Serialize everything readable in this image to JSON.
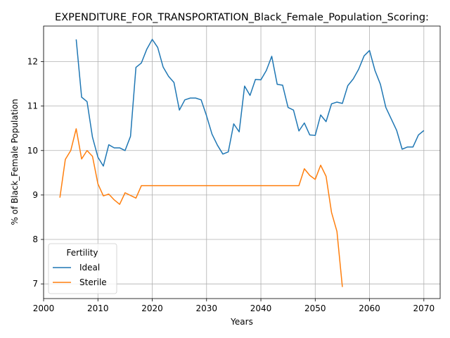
{
  "chart_data": {
    "type": "line",
    "title": "EXPENDITURE_FOR_TRANSPORTATION_Black_Female_Population_Scoring:",
    "xlabel": "Years",
    "ylabel": "% of Black_Female Population",
    "xlim": [
      2000,
      2073
    ],
    "ylim": [
      6.67,
      12.8
    ],
    "xticks": [
      2000,
      2010,
      2020,
      2030,
      2040,
      2050,
      2060,
      2070
    ],
    "yticks": [
      7,
      8,
      9,
      10,
      11,
      12
    ],
    "grid": true,
    "legend": {
      "title": "Fertility",
      "placement": "lower-left"
    },
    "series": [
      {
        "name": "Ideal",
        "color": "#1f77b4",
        "x": [
          2006,
          2007,
          2008,
          2009,
          2010,
          2011,
          2012,
          2013,
          2014,
          2015,
          2016,
          2017,
          2018,
          2019,
          2020,
          2021,
          2022,
          2023,
          2024,
          2025,
          2026,
          2027,
          2028,
          2029,
          2030,
          2031,
          2032,
          2033,
          2034,
          2035,
          2036,
          2037,
          2038,
          2039,
          2040,
          2041,
          2042,
          2043,
          2044,
          2045,
          2046,
          2047,
          2048,
          2049,
          2050,
          2051,
          2052,
          2053,
          2054,
          2055,
          2056,
          2057,
          2058,
          2059,
          2060,
          2061,
          2062,
          2063,
          2064,
          2065,
          2066,
          2067,
          2068,
          2069,
          2070
        ],
        "values": [
          12.5,
          11.2,
          11.1,
          10.3,
          9.85,
          9.65,
          10.13,
          10.06,
          10.06,
          10.0,
          10.32,
          11.87,
          11.97,
          12.28,
          12.5,
          12.32,
          11.88,
          11.67,
          11.53,
          10.91,
          11.14,
          11.18,
          11.18,
          11.14,
          10.78,
          10.37,
          10.12,
          9.92,
          9.97,
          10.6,
          10.42,
          11.45,
          11.24,
          11.6,
          11.59,
          11.8,
          12.12,
          11.49,
          11.47,
          10.97,
          10.91,
          10.44,
          10.62,
          10.35,
          10.34,
          10.8,
          10.65,
          11.05,
          11.09,
          11.06,
          11.46,
          11.61,
          11.83,
          12.13,
          12.25,
          11.8,
          11.49,
          10.97,
          10.71,
          10.45,
          10.03,
          10.08,
          10.08,
          10.35,
          10.45
        ]
      },
      {
        "name": "Sterile",
        "color": "#ff7f0e",
        "x": [
          2003,
          2004,
          2005,
          2006,
          2007,
          2008,
          2009,
          2010,
          2011,
          2012,
          2013,
          2014,
          2015,
          2016,
          2017,
          2018,
          2019,
          2020,
          2021,
          2022,
          2023,
          2024,
          2025,
          2026,
          2027,
          2028,
          2029,
          2030,
          2031,
          2032,
          2033,
          2034,
          2035,
          2036,
          2037,
          2038,
          2039,
          2040,
          2041,
          2042,
          2043,
          2044,
          2045,
          2046,
          2047,
          2048,
          2049,
          2050,
          2051,
          2052,
          2053,
          2054,
          2055
        ],
        "values": [
          8.94,
          9.8,
          10.0,
          10.49,
          9.81,
          10.0,
          9.87,
          9.25,
          8.98,
          9.02,
          8.89,
          8.79,
          9.05,
          8.99,
          8.93,
          9.21,
          9.21,
          9.21,
          9.21,
          9.21,
          9.21,
          9.21,
          9.21,
          9.21,
          9.21,
          9.21,
          9.21,
          9.21,
          9.21,
          9.21,
          9.21,
          9.21,
          9.21,
          9.21,
          9.21,
          9.21,
          9.21,
          9.21,
          9.21,
          9.21,
          9.21,
          9.21,
          9.21,
          9.21,
          9.21,
          9.59,
          9.44,
          9.35,
          9.67,
          9.42,
          8.61,
          8.18,
          6.93
        ]
      }
    ]
  }
}
